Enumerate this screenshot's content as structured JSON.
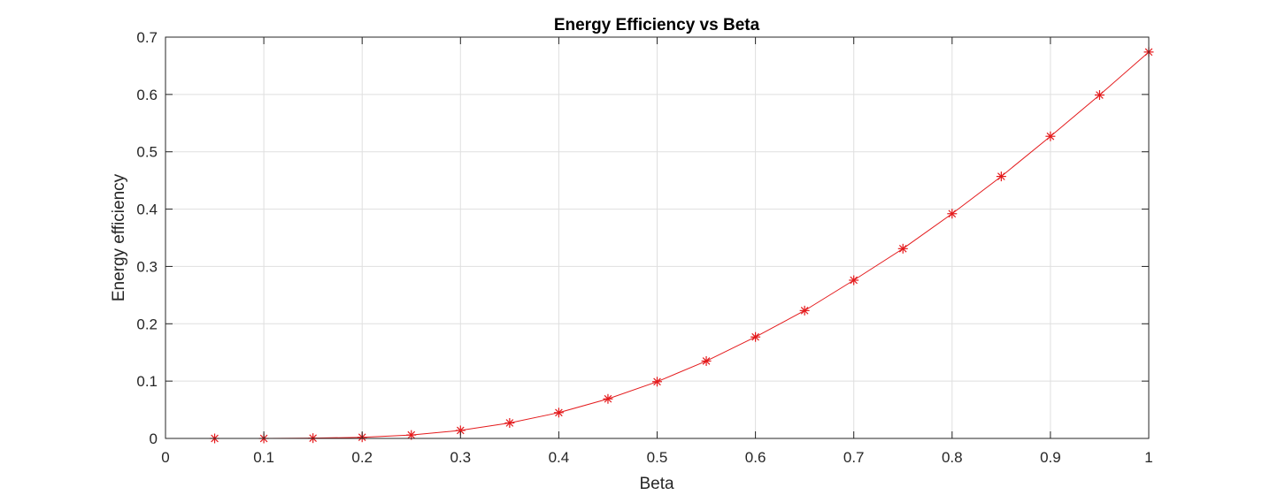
{
  "chart_data": {
    "type": "line",
    "title": "Energy Efficiency vs Beta",
    "xlabel": "Beta",
    "ylabel": "Energy efficiency",
    "xlim": [
      0,
      1
    ],
    "ylim": [
      0,
      0.7
    ],
    "xticks": [
      "0",
      "0.1",
      "0.2",
      "0.3",
      "0.4",
      "0.5",
      "0.6",
      "0.7",
      "0.8",
      "0.9",
      "1"
    ],
    "yticks": [
      "0",
      "0.1",
      "0.2",
      "0.3",
      "0.4",
      "0.5",
      "0.6",
      "0.7"
    ],
    "grid": true,
    "box": true,
    "series": [
      {
        "color": "#e41a1c",
        "marker": "asterisk",
        "x": [
          0.05,
          0.1,
          0.15,
          0.2,
          0.25,
          0.3,
          0.35,
          0.4,
          0.45,
          0.5,
          0.55,
          0.6,
          0.65,
          0.7,
          0.75,
          0.8,
          0.85,
          0.9,
          0.95,
          1.0
        ],
        "y": [
          0.0,
          0.0,
          0.0005,
          0.002,
          0.006,
          0.014,
          0.027,
          0.045,
          0.069,
          0.099,
          0.135,
          0.177,
          0.223,
          0.276,
          0.331,
          0.392,
          0.457,
          0.527,
          0.599,
          0.674
        ]
      }
    ]
  }
}
